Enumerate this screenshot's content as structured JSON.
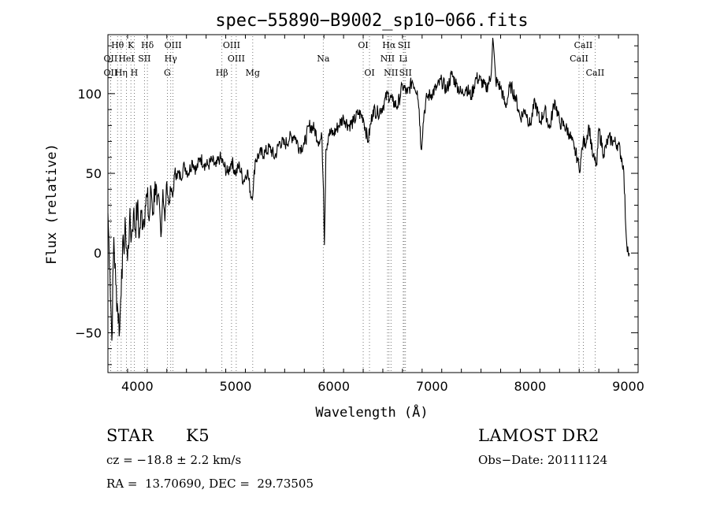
{
  "chart_data": {
    "type": "line",
    "title": "spec−55890−B9002_sp10−066.fits",
    "xlabel": "Wavelength (Å)",
    "ylabel": "Flux (relative)",
    "xlim": [
      3700,
      9100
    ],
    "ylim": [
      -75,
      137
    ],
    "x_ticks": [
      4000,
      5000,
      6000,
      7000,
      8000,
      9000
    ],
    "y_ticks": [
      -50,
      0,
      50,
      100
    ],
    "grid": false,
    "series": [
      {
        "x": [
          3700,
          3720,
          3740,
          3760,
          3780,
          3800,
          3820,
          3840,
          3860,
          3880,
          3900,
          3920,
          3940,
          3960,
          3980,
          4000,
          4020,
          4040,
          4060,
          4080,
          4100,
          4120,
          4140,
          4160,
          4180,
          4200,
          4220,
          4240,
          4260,
          4280,
          4300,
          4320,
          4340,
          4360,
          4380,
          4400,
          4440,
          4480,
          4520,
          4560,
          4600,
          4640,
          4680,
          4720,
          4760,
          4800,
          4840,
          4880,
          4920,
          4960,
          5000,
          5040,
          5080,
          5120,
          5160,
          5180,
          5200,
          5240,
          5300,
          5350,
          5400,
          5450,
          5500,
          5550,
          5600,
          5650,
          5700,
          5750,
          5800,
          5850,
          5880,
          5895,
          5905,
          5920,
          5950,
          6000,
          6050,
          6100,
          6150,
          6200,
          6250,
          6300,
          6350,
          6400,
          6450,
          6500,
          6550,
          6600,
          6650,
          6700,
          6750,
          6800,
          6850,
          6870,
          6890,
          6920,
          6950,
          7000,
          7050,
          7100,
          7150,
          7200,
          7250,
          7300,
          7350,
          7400,
          7450,
          7500,
          7550,
          7600,
          7620,
          7650,
          7700,
          7750,
          7800,
          7850,
          7900,
          7950,
          8000,
          8050,
          8100,
          8150,
          8200,
          8250,
          8300,
          8350,
          8400,
          8450,
          8480,
          8500,
          8520,
          8540,
          8560,
          8600,
          8640,
          8660,
          8680,
          8700,
          8750,
          8800,
          8850,
          8900,
          8950,
          8980,
          9000,
          9010
        ],
        "y": [
          25,
          -10,
          -55,
          10,
          -20,
          -35,
          -48,
          -10,
          5,
          15,
          -5,
          20,
          10,
          25,
          15,
          30,
          10,
          25,
          20,
          30,
          35,
          20,
          40,
          25,
          45,
          30,
          35,
          10,
          40,
          20,
          45,
          30,
          40,
          35,
          50,
          50,
          48,
          55,
          50,
          58,
          52,
          60,
          56,
          55,
          58,
          54,
          60,
          55,
          50,
          58,
          50,
          55,
          45,
          52,
          35,
          40,
          58,
          62,
          63,
          66,
          60,
          70,
          68,
          72,
          74,
          66,
          68,
          80,
          78,
          70,
          72,
          40,
          5,
          65,
          75,
          75,
          80,
          85,
          80,
          82,
          88,
          85,
          70,
          90,
          88,
          92,
          100,
          95,
          92,
          105,
          100,
          108,
          102,
          90,
          65,
          88,
          98,
          100,
          104,
          108,
          102,
          112,
          106,
          100,
          104,
          98,
          110,
          108,
          103,
          110,
          135,
          108,
          104,
          92,
          105,
          98,
          85,
          90,
          80,
          95,
          82,
          90,
          78,
          96,
          82,
          80,
          75,
          65,
          60,
          52,
          60,
          70,
          68,
          80,
          60,
          58,
          55,
          78,
          62,
          72,
          70,
          68,
          55,
          10,
          0,
          0
        ]
      }
    ],
    "line_annotations": [
      {
        "label": "Hθ",
        "x": 3798,
        "row": 0
      },
      {
        "label": "K",
        "x": 3934,
        "row": 0
      },
      {
        "label": "Hδ",
        "x": 4102,
        "row": 0
      },
      {
        "label": "OIII",
        "x": 4363,
        "row": 0
      },
      {
        "label": "OIII",
        "x": 4959,
        "row": 0
      },
      {
        "label": "OI",
        "x": 6300,
        "row": 0
      },
      {
        "label": "Hα",
        "x": 6563,
        "row": 0
      },
      {
        "label": "SII",
        "x": 6717,
        "row": 0
      },
      {
        "label": "CaII",
        "x": 8542,
        "row": 0
      },
      {
        "label": "OII",
        "x": 3727,
        "row": 1
      },
      {
        "label": "HeI",
        "x": 3889,
        "row": 1
      },
      {
        "label": "SII",
        "x": 4072,
        "row": 1
      },
      {
        "label": "Hγ",
        "x": 4340,
        "row": 1
      },
      {
        "label": "OIII",
        "x": 5007,
        "row": 1
      },
      {
        "label": "Na",
        "x": 5893,
        "row": 1
      },
      {
        "label": "NII",
        "x": 6548,
        "row": 1
      },
      {
        "label": "Li",
        "x": 6708,
        "row": 1
      },
      {
        "label": "CaII",
        "x": 8498,
        "row": 1
      },
      {
        "label": "OII",
        "x": 3727,
        "row": 2
      },
      {
        "label": "Hη",
        "x": 3835,
        "row": 2
      },
      {
        "label": "H",
        "x": 3968,
        "row": 2
      },
      {
        "label": "G",
        "x": 4305,
        "row": 2
      },
      {
        "label": "Hβ",
        "x": 4861,
        "row": 2
      },
      {
        "label": "Mg",
        "x": 5175,
        "row": 2
      },
      {
        "label": "OI",
        "x": 6364,
        "row": 2
      },
      {
        "label": "NII",
        "x": 6583,
        "row": 2
      },
      {
        "label": "SII",
        "x": 6731,
        "row": 2
      },
      {
        "label": "CaII",
        "x": 8662,
        "row": 2
      }
    ]
  },
  "info": {
    "object_class": "STAR",
    "subclass": "K5",
    "survey": "LAMOST DR2",
    "cz": "cz = −18.8 ± 2.2 km/s",
    "obs_date": "Obs−Date: 20111124",
    "radec": "RA =  13.70690, DEC =  29.73505"
  }
}
